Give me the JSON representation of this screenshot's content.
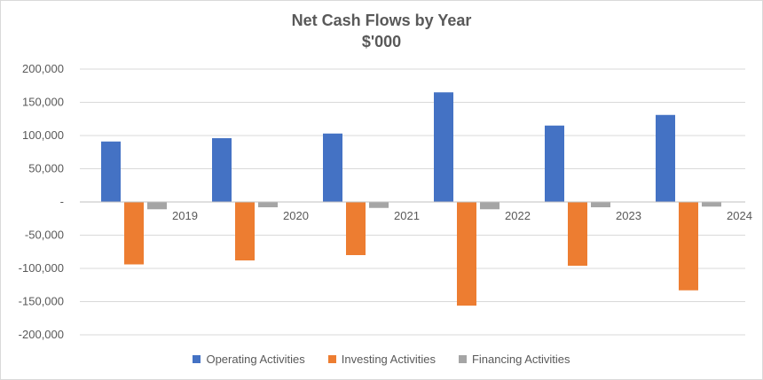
{
  "chart_data": {
    "type": "bar",
    "title": "Net Cash Flows by Year",
    "subtitle": "$'000",
    "categories": [
      "2019",
      "2020",
      "2021",
      "2022",
      "2023",
      "2024"
    ],
    "series": [
      {
        "name": "Operating Activities",
        "color": "#4472C4",
        "values": [
          91000,
          96000,
          103000,
          165000,
          115000,
          131000
        ]
      },
      {
        "name": "Investing Activities",
        "color": "#ED7D31",
        "values": [
          -94000,
          -88000,
          -80000,
          -156000,
          -96000,
          -133000
        ]
      },
      {
        "name": "Financing Activities",
        "color": "#A5A5A5",
        "values": [
          -11000,
          -8000,
          -9000,
          -11000,
          -8000,
          -7000
        ]
      }
    ],
    "ylim": [
      -200000,
      200000
    ],
    "yticks": [
      200000,
      150000,
      100000,
      50000,
      0,
      -50000,
      -100000,
      -150000,
      -200000
    ],
    "ytick_labels": [
      "200,000",
      "150,000",
      "100,000",
      "50,000",
      "-",
      "-50,000",
      "-100,000",
      "-150,000",
      "-200,000"
    ],
    "grid": true,
    "legend": "bottom"
  }
}
